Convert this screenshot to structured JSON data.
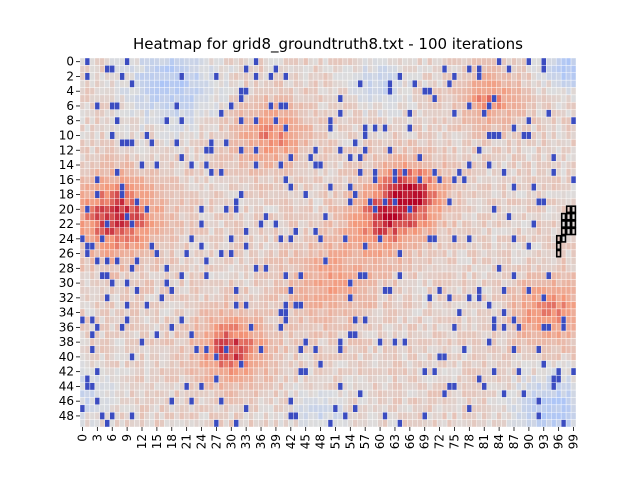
{
  "chart_data": {
    "type": "heatmap",
    "title": "Heatmap for grid8_groundtruth8.txt - 100 iterations",
    "rows": 50,
    "cols": 100,
    "y_tick_labels": [
      "0",
      "2",
      "4",
      "6",
      "8",
      "10",
      "12",
      "14",
      "16",
      "18",
      "20",
      "22",
      "24",
      "26",
      "28",
      "30",
      "32",
      "34",
      "36",
      "38",
      "40",
      "42",
      "44",
      "46",
      "48"
    ],
    "x_tick_labels": [
      "0",
      "3",
      "6",
      "9",
      "12",
      "15",
      "18",
      "21",
      "24",
      "27",
      "30",
      "33",
      "36",
      "39",
      "42",
      "45",
      "48",
      "51",
      "54",
      "57",
      "60",
      "63",
      "66",
      "69",
      "72",
      "75",
      "78",
      "81",
      "84",
      "87",
      "90",
      "93",
      "96",
      "99"
    ],
    "colormap": "coolwarm",
    "colors": {
      "low": "#3b4cc0",
      "mid": "#dddddd",
      "high": "#b40426",
      "gridline": "#ffffff",
      "outline": "#000000"
    },
    "grid_lines": true,
    "colorbar": false,
    "hot_regions": [
      {
        "row": 21,
        "col": 7,
        "radius": 6,
        "value": 0.78
      },
      {
        "row": 18,
        "col": 66,
        "radius": 5,
        "value": 0.78
      },
      {
        "row": 39,
        "col": 30,
        "radius": 5,
        "value": 0.72
      },
      {
        "row": 22,
        "col": 60,
        "radius": 5,
        "value": 0.55
      },
      {
        "row": 10,
        "col": 38,
        "radius": 5,
        "value": 0.5
      },
      {
        "row": 34,
        "col": 94,
        "radius": 5,
        "value": 0.55
      },
      {
        "row": 5,
        "col": 82,
        "radius": 4,
        "value": 0.5
      },
      {
        "row": 30,
        "col": 50,
        "radius": 6,
        "value": 0.4
      }
    ],
    "cool_regions": [
      {
        "row": 3,
        "col": 18,
        "radius": 6,
        "value": -0.5
      },
      {
        "row": 47,
        "col": 95,
        "radius": 5,
        "value": -0.5
      },
      {
        "row": 1,
        "col": 98,
        "radius": 3,
        "value": -0.55
      },
      {
        "row": 45,
        "col": 1,
        "radius": 4,
        "value": -0.3
      },
      {
        "row": 3,
        "col": 60,
        "radius": 4,
        "value": -0.3
      },
      {
        "row": 48,
        "col": 48,
        "radius": 4,
        "value": -0.25
      }
    ],
    "outlined_cells": [
      [
        20,
        98
      ],
      [
        20,
        99
      ],
      [
        21,
        97
      ],
      [
        21,
        98
      ],
      [
        21,
        99
      ],
      [
        22,
        97
      ],
      [
        22,
        98
      ],
      [
        22,
        99
      ],
      [
        23,
        97
      ],
      [
        23,
        98
      ],
      [
        23,
        99
      ],
      [
        24,
        96
      ],
      [
        24,
        97
      ],
      [
        25,
        96
      ],
      [
        26,
        96
      ]
    ]
  }
}
